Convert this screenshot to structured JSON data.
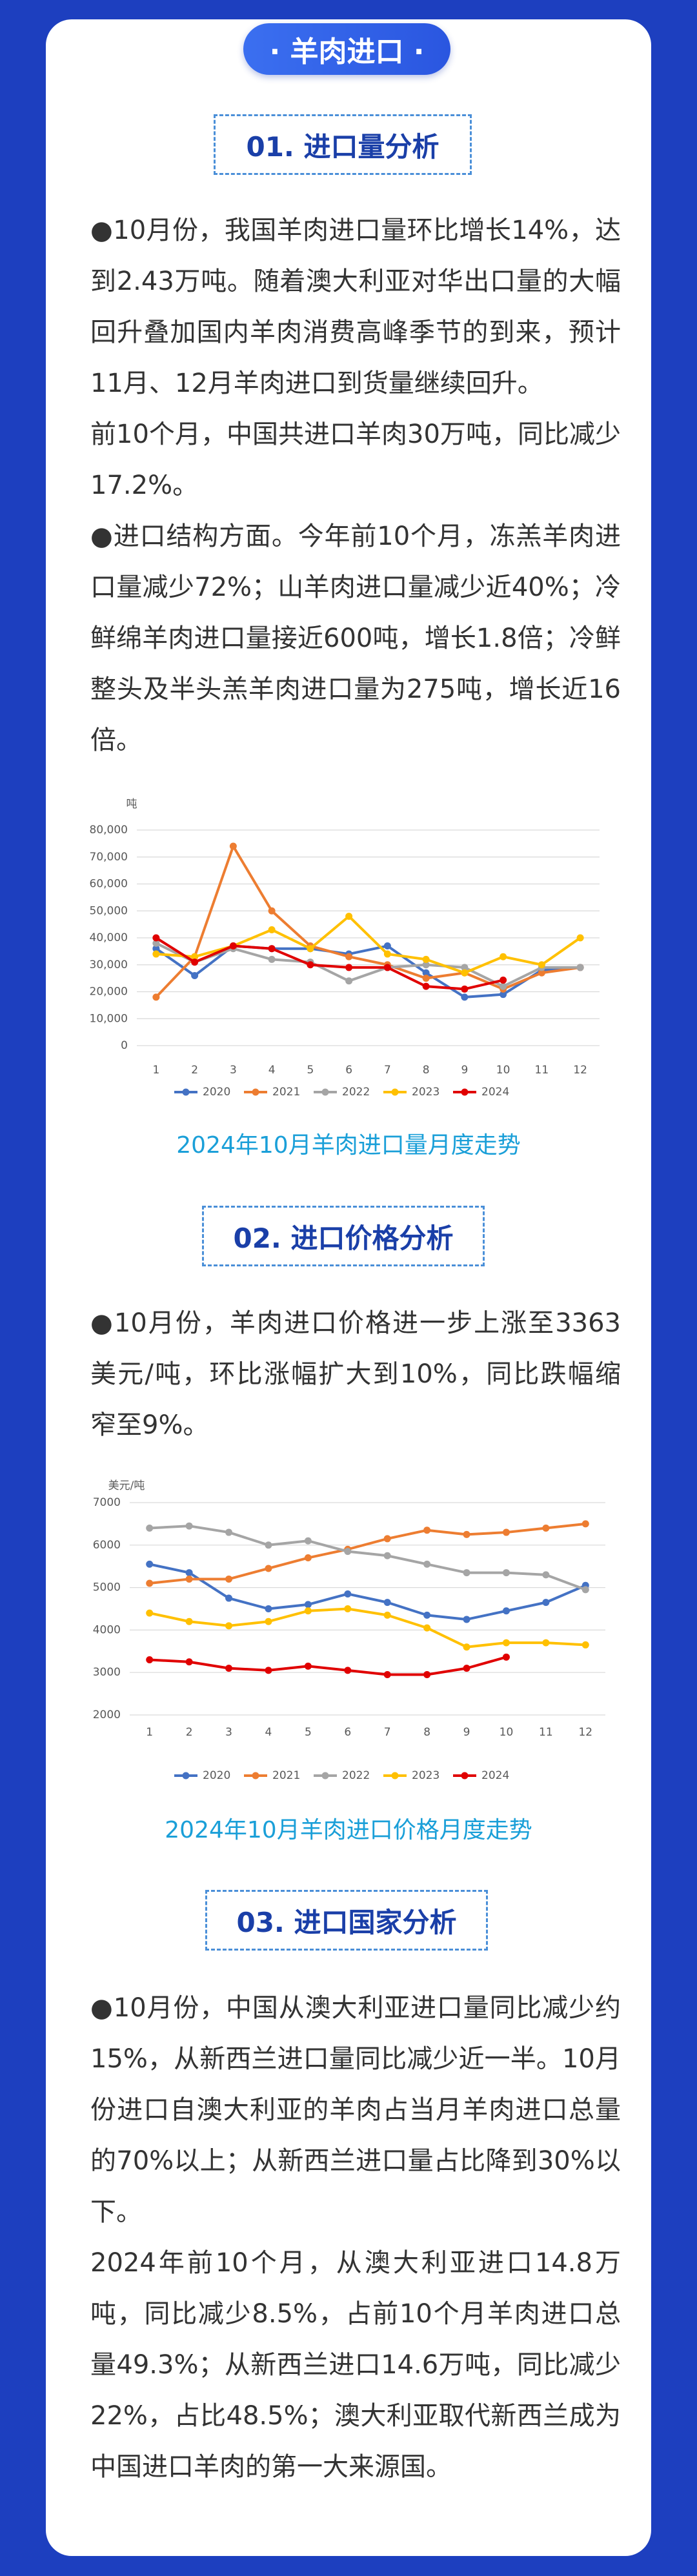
{
  "header": {
    "title": "· 羊肉进口 ·"
  },
  "sections": [
    {
      "heading": "01. 进口量分析",
      "paragraphs": [
        "●10月份，我国羊肉进口量环比增长14%，达到2.43万吨。随着澳大利亚对华出口量的大幅回升叠加国内羊肉消费高峰季节的到来，预计11月、12月羊肉进口到货量继续回升。",
        "前10个月，中国共进口羊肉30万吨，同比减少17.2%。",
        "●进口结构方面。今年前10个月，冻羔羊肉进口量减少72%；山羊肉进口量减少近40%；冷鲜绵羊肉进口量接近600吨，增长1.8倍；冷鲜整头及半头羔羊肉进口量为275吨，增长近16倍。"
      ]
    },
    {
      "heading": "02. 进口价格分析",
      "paragraphs": [
        "●10月份，羊肉进口价格进一步上涨至3363美元/吨，环比涨幅扩大到10%，同比跌幅缩窄至9%。"
      ]
    },
    {
      "heading": "03. 进口国家分析",
      "paragraphs": [
        "●10月份，中国从澳大利亚进口量同比减少约15%，从新西兰进口量同比减少近一半。10月份进口自澳大利亚的羊肉占当月羊肉进口总量的70%以上；从新西兰进口量占比降到30%以下。",
        "2024年前10个月，从澳大利亚进口14.8万吨，同比减少8.5%，占前10个月羊肉进口总量49.3%；从新西兰进口14.6万吨，同比减少22%，占比48.5%；澳大利亚取代新西兰成为中国进口羊肉的第一大来源国。"
      ]
    }
  ],
  "chart_data": [
    {
      "type": "line",
      "caption": "2024年10月羊肉进口量月度走势",
      "y_label": "吨",
      "categories": [
        1,
        2,
        3,
        4,
        5,
        6,
        7,
        8,
        9,
        10,
        11,
        12
      ],
      "ylim": [
        0,
        80000
      ],
      "yticks": [
        0,
        {
          "value": 10000,
          "label": "10,000"
        },
        {
          "value": 20000,
          "label": "20,000"
        },
        {
          "value": 30000,
          "label": "30,000"
        },
        {
          "value": 40000,
          "label": "40,000"
        },
        {
          "value": 50000,
          "label": "50,000"
        },
        {
          "value": 60000,
          "label": "60,000"
        },
        {
          "value": 70000,
          "label": "70,000"
        },
        {
          "value": 80000,
          "label": "80,000"
        }
      ],
      "grid": true,
      "legend": "bottom",
      "series": [
        {
          "name": "2020",
          "color": "#4472c4",
          "values": [
            36000,
            26000,
            37000,
            36000,
            36000,
            34000,
            37000,
            27000,
            18000,
            19000,
            28000,
            29000
          ]
        },
        {
          "name": "2021",
          "color": "#ed7d31",
          "values": [
            18000,
            33000,
            74000,
            50000,
            37000,
            33000,
            30000,
            25000,
            27000,
            21000,
            27000,
            29000
          ]
        },
        {
          "name": "2022",
          "color": "#a5a5a5",
          "values": [
            38000,
            31000,
            36000,
            32000,
            31000,
            24000,
            29000,
            30000,
            29000,
            22000,
            29000,
            29000
          ]
        },
        {
          "name": "2023",
          "color": "#ffc000",
          "values": [
            34000,
            33000,
            37000,
            43000,
            36000,
            48000,
            34000,
            32000,
            27000,
            33000,
            30000,
            40000
          ]
        },
        {
          "name": "2024",
          "color": "#e00000",
          "values": [
            40000,
            31000,
            37000,
            36000,
            30000,
            29000,
            29000,
            22000,
            21000,
            24300,
            null,
            null
          ]
        }
      ]
    },
    {
      "type": "line",
      "caption": "2024年10月羊肉进口价格月度走势",
      "y_label": "美元/吨",
      "categories": [
        1,
        2,
        3,
        4,
        5,
        6,
        7,
        8,
        9,
        10,
        11,
        12
      ],
      "ylim": [
        2000,
        7000
      ],
      "yticks": [
        2000,
        3000,
        4000,
        5000,
        6000,
        7000
      ],
      "grid": true,
      "legend": "bottom",
      "series": [
        {
          "name": "2020",
          "color": "#4472c4",
          "values": [
            5550,
            5350,
            4750,
            4500,
            4600,
            4850,
            4650,
            4350,
            4250,
            4450,
            4650,
            5050
          ]
        },
        {
          "name": "2021",
          "color": "#ed7d31",
          "values": [
            5100,
            5200,
            5200,
            5450,
            5700,
            5900,
            6150,
            6350,
            6250,
            6300,
            6400,
            6500
          ]
        },
        {
          "name": "2022",
          "color": "#a5a5a5",
          "values": [
            6400,
            6450,
            6300,
            6000,
            6100,
            5850,
            5750,
            5550,
            5350,
            5350,
            5300,
            4950
          ]
        },
        {
          "name": "2023",
          "color": "#ffc000",
          "values": [
            4400,
            4200,
            4100,
            4200,
            4450,
            4500,
            4350,
            4050,
            3600,
            3700,
            3700,
            3650
          ]
        },
        {
          "name": "2024",
          "color": "#e00000",
          "values": [
            3300,
            3250,
            3100,
            3050,
            3150,
            3050,
            2950,
            2950,
            3100,
            3363,
            null,
            null
          ]
        }
      ]
    }
  ]
}
